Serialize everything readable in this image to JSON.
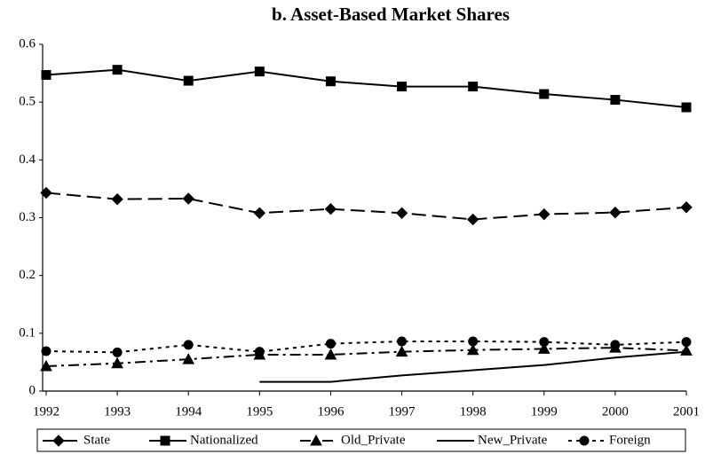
{
  "chart_data": {
    "type": "line",
    "title": "b. Asset-Based Market Shares",
    "x": [
      1992,
      1993,
      1994,
      1995,
      1996,
      1997,
      1998,
      1999,
      2000,
      2001
    ],
    "xlim": [
      1992,
      2001
    ],
    "xticks": [
      1992,
      1993,
      1994,
      1995,
      1996,
      1997,
      1998,
      1999,
      2000,
      2001
    ],
    "ylim": [
      0,
      0.6
    ],
    "yticks": [
      0,
      0.1,
      0.2,
      0.3,
      0.4,
      0.5,
      0.6
    ],
    "grid": false,
    "legend": "bottom",
    "series": [
      {
        "name": "State",
        "color": "#000000",
        "line": "dashed",
        "marker": "diamond",
        "values": [
          0.343,
          0.332,
          0.333,
          0.308,
          0.315,
          0.308,
          0.297,
          0.306,
          0.309,
          0.318
        ]
      },
      {
        "name": "Nationalized",
        "color": "#000000",
        "line": "solid",
        "marker": "square",
        "values": [
          0.547,
          0.556,
          0.537,
          0.553,
          0.536,
          0.527,
          0.527,
          0.514,
          0.504,
          0.491
        ]
      },
      {
        "name": "Old_Private",
        "color": "#000000",
        "line": "dashdot",
        "marker": "triangle",
        "values": [
          0.043,
          0.048,
          0.055,
          0.063,
          0.063,
          0.068,
          0.071,
          0.073,
          0.075,
          0.07
        ]
      },
      {
        "name": "New_Private",
        "color": "#000000",
        "line": "solid",
        "marker": "none",
        "values": [
          null,
          null,
          null,
          0.016,
          0.016,
          0.027,
          0.036,
          0.045,
          0.058,
          0.068
        ]
      },
      {
        "name": "Foreign",
        "color": "#000000",
        "line": "dotted",
        "marker": "circle",
        "values": [
          0.069,
          0.067,
          0.08,
          0.068,
          0.082,
          0.086,
          0.086,
          0.085,
          0.08,
          0.085
        ]
      }
    ]
  }
}
